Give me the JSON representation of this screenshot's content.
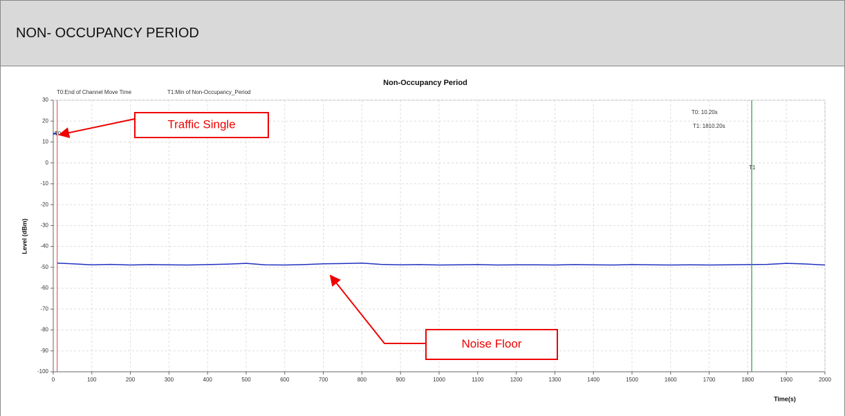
{
  "header": {
    "title": "NON- OCCUPANCY PERIOD"
  },
  "chart_data": {
    "type": "line",
    "title": "Non-Occupancy Period",
    "x_label": "Time(s)",
    "y_label": "Level (dBm)",
    "series": [
      {
        "name": "Traffic",
        "color": "#1f2fbf",
        "x": [
          0,
          2,
          4,
          6,
          8,
          10
        ],
        "values": [
          13.5,
          14.2,
          13.8,
          14.3,
          13.6,
          13.9
        ]
      },
      {
        "name": "Noise",
        "color": "#1f2fbf",
        "x": [
          10,
          50,
          100,
          150,
          200,
          250,
          300,
          350,
          400,
          450,
          500,
          550,
          600,
          650,
          700,
          750,
          800,
          850,
          900,
          950,
          1000,
          1050,
          1100,
          1150,
          1200,
          1250,
          1300,
          1350,
          1400,
          1450,
          1500,
          1550,
          1600,
          1650,
          1700,
          1750,
          1800,
          1850,
          1900,
          1950,
          2000
        ],
        "values": [
          -48,
          -48.3,
          -48.8,
          -48.6,
          -48.9,
          -48.7,
          -48.8,
          -48.9,
          -48.7,
          -48.5,
          -48.1,
          -48.8,
          -48.9,
          -48.7,
          -48.3,
          -48.2,
          -48,
          -48.6,
          -48.8,
          -48.7,
          -48.9,
          -48.8,
          -48.7,
          -48.9,
          -48.8,
          -48.8,
          -48.9,
          -48.7,
          -48.8,
          -48.9,
          -48.7,
          -48.8,
          -48.9,
          -48.8,
          -48.9,
          -48.8,
          -48.7,
          -48.6,
          -48.1,
          -48.4,
          -48.9
        ]
      }
    ],
    "markers": [
      {
        "name": "T0",
        "x": 10.2,
        "color": "#e06060",
        "legend": "T0:End of Channel Move Time",
        "readout": "T0: 10.20s"
      },
      {
        "name": "T1",
        "x": 1810.2,
        "color": "#2a9a3a",
        "legend": "T1:Min of Non-Occupancy_Period",
        "readout": "T1: 1810.20s"
      }
    ],
    "annotations": [
      {
        "text": "Traffic Single"
      },
      {
        "text": "Noise Floor"
      }
    ],
    "xlim": [
      0,
      2000
    ],
    "xticks": [
      0,
      100,
      200,
      300,
      400,
      500,
      600,
      700,
      800,
      900,
      1000,
      1100,
      1200,
      1300,
      1400,
      1500,
      1600,
      1700,
      1800,
      1900,
      2000
    ],
    "ylim": [
      -100,
      30
    ],
    "yticks": [
      -100,
      -90,
      -80,
      -70,
      -60,
      -50,
      -40,
      -30,
      -20,
      -10,
      0,
      10,
      20,
      30
    ],
    "grid": true
  }
}
